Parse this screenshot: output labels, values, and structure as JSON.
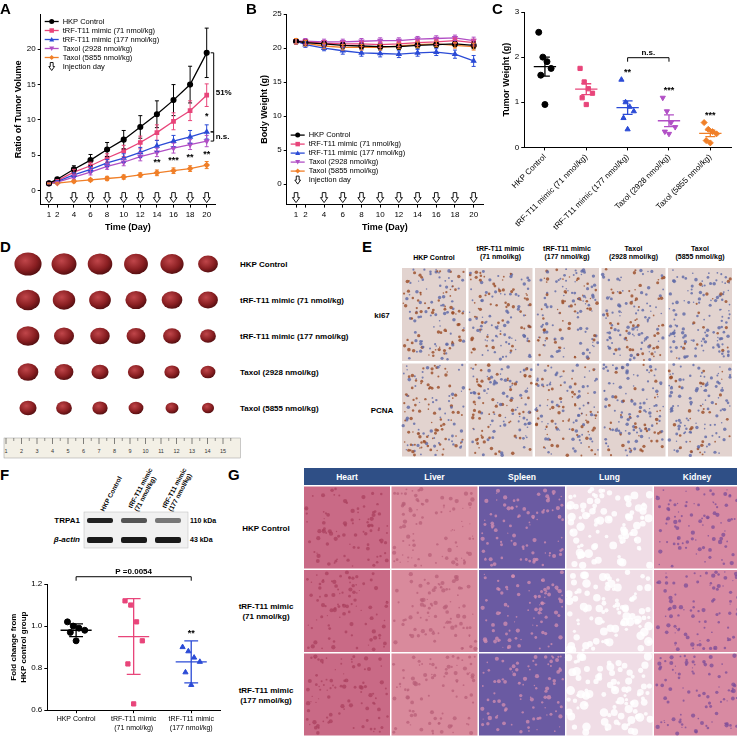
{
  "chart_data": [
    {
      "panel": "A",
      "type": "line",
      "x_label": "Time (Day)",
      "y_label": "Ratio of Tumor Volume",
      "xlim": [
        0,
        21
      ],
      "xticks": [
        1,
        2,
        4,
        6,
        8,
        10,
        12,
        14,
        16,
        18,
        20
      ],
      "ylim": [
        -2,
        25
      ],
      "yticks": [
        0,
        5,
        10,
        15,
        20
      ],
      "grid": false,
      "legend": "upper left",
      "x": [
        1,
        2,
        4,
        6,
        8,
        10,
        12,
        14,
        16,
        18,
        20
      ],
      "series": [
        {
          "name": "HKP Control",
          "color": "#000000",
          "marker": "circle",
          "values": [
            1,
            1.6,
            3,
            4.3,
            5.8,
            7.2,
            9,
            10.8,
            12.8,
            15,
            19.5
          ],
          "errors": [
            0.05,
            0.2,
            0.5,
            0.8,
            1,
            1.3,
            1.6,
            1.9,
            2.2,
            2.6,
            3.5
          ]
        },
        {
          "name": "tRF-T11 mimic (71 nmol/kg)",
          "color": "#e8457a",
          "marker": "square",
          "values": [
            1,
            1.4,
            2.6,
            3.5,
            4.6,
            5.6,
            6.8,
            8.2,
            9.8,
            11.3,
            13.5
          ],
          "errors": [
            0.05,
            0.15,
            0.4,
            0.5,
            0.6,
            0.8,
            0.9,
            1.1,
            1.2,
            1.4,
            1.6
          ]
        },
        {
          "name": "tRF-T11 mimic (177 nmol/kg)",
          "color": "#2b4bd6",
          "marker": "triangle",
          "values": [
            1,
            1.3,
            2.2,
            3,
            3.9,
            4.6,
            5.4,
            6.3,
            7,
            7.6,
            8.3
          ],
          "errors": [
            0.05,
            0.1,
            0.3,
            0.4,
            0.5,
            0.6,
            0.7,
            0.8,
            0.8,
            0.9,
            1
          ]
        },
        {
          "name": "Taxol (2928 nmol/kg)",
          "color": "#b14fc5",
          "marker": "triangle-down",
          "values": [
            1,
            1.2,
            1.9,
            2.6,
            3.4,
            4,
            4.8,
            5.4,
            6,
            6.5,
            7
          ],
          "errors": [
            0.05,
            0.1,
            0.3,
            0.4,
            0.4,
            0.5,
            0.6,
            0.6,
            0.7,
            0.7,
            0.8
          ]
        },
        {
          "name": "Taxol (5855 nmol/kg)",
          "color": "#f07f28",
          "marker": "diamond",
          "values": [
            1,
            1.05,
            1.3,
            1.5,
            1.7,
            1.9,
            2.2,
            2.5,
            2.8,
            3.1,
            3.6
          ],
          "errors": [
            0.05,
            0.1,
            0.2,
            0.2,
            0.3,
            0.3,
            0.3,
            0.4,
            0.4,
            0.4,
            0.5
          ]
        }
      ],
      "injection_days": [
        1,
        4,
        6,
        8,
        10,
        12,
        14,
        16,
        18,
        20
      ],
      "injection_label": "Injection day",
      "annotations": [
        {
          "text": "**",
          "x": 14,
          "y": 3.9
        },
        {
          "text": "***",
          "x": 16,
          "y": 4.3
        },
        {
          "text": "**",
          "x": 18,
          "y": 4.6
        },
        {
          "text": "*",
          "x": 20,
          "y": 10.5
        },
        {
          "text": "**",
          "x": 20,
          "y": 5.1
        }
      ],
      "brackets": [
        {
          "text": "51%",
          "from": "HKP Control",
          "to": "tRF-T11 mimic (177 nmol/kg)"
        },
        {
          "text": "n.s.",
          "from": "tRF-T11 mimic (177 nmol/kg)",
          "to": "Taxol (2928 nmol/kg)"
        }
      ]
    },
    {
      "panel": "B",
      "type": "line",
      "x_label": "Time (Day)",
      "y_label": "Body Weight (g)",
      "xlim": [
        0,
        21
      ],
      "xticks": [
        1,
        2,
        4,
        6,
        8,
        10,
        12,
        14,
        16,
        18,
        20
      ],
      "ylim": [
        -3,
        25
      ],
      "yticks": [
        0,
        5,
        10,
        15,
        20,
        25
      ],
      "grid": false,
      "legend": "lower left",
      "x": [
        1,
        2,
        4,
        6,
        8,
        10,
        12,
        14,
        16,
        18,
        20
      ],
      "series": [
        {
          "name": "HKP Control",
          "color": "#000000",
          "marker": "circle",
          "values": [
            21,
            20.8,
            20.6,
            20.4,
            20.3,
            20.2,
            20.2,
            20.4,
            20.5,
            20.6,
            20.4
          ],
          "errors": [
            0.4,
            0.4,
            0.4,
            0.4,
            0.4,
            0.4,
            0.4,
            0.4,
            0.4,
            0.4,
            0.5
          ]
        },
        {
          "name": "tRF-T11 mimic (71 nmol/kg)",
          "color": "#e8457a",
          "marker": "square",
          "values": [
            21,
            20.9,
            20.7,
            20.6,
            20.6,
            20.5,
            20.6,
            20.8,
            20.9,
            21.1,
            20.8
          ],
          "errors": [
            0.4,
            0.4,
            0.4,
            0.4,
            0.4,
            0.4,
            0.4,
            0.4,
            0.4,
            0.4,
            0.5
          ]
        },
        {
          "name": "tRF-T11 mimic (177 nmol/kg)",
          "color": "#2b4bd6",
          "marker": "triangle",
          "values": [
            21,
            20.5,
            20,
            19.6,
            19.3,
            19.2,
            19.1,
            19.3,
            19.4,
            19.1,
            18.1
          ],
          "errors": [
            0.4,
            0.4,
            0.4,
            0.5,
            0.5,
            0.5,
            0.5,
            0.5,
            0.5,
            0.6,
            0.8
          ]
        },
        {
          "name": "Taxol (2928 nmol/kg)",
          "color": "#b14fc5",
          "marker": "triangle-down",
          "values": [
            21,
            21,
            20.9,
            20.9,
            21,
            21.1,
            21.1,
            21.3,
            21.4,
            21.5,
            21.1
          ],
          "errors": [
            0.4,
            0.4,
            0.4,
            0.4,
            0.4,
            0.4,
            0.4,
            0.4,
            0.4,
            0.4,
            0.5
          ]
        },
        {
          "name": "Taxol (5855 nmol/kg)",
          "color": "#f07f28",
          "marker": "diamond",
          "values": [
            21,
            20.7,
            20.3,
            20.1,
            20.1,
            20.1,
            20.3,
            20.5,
            20.6,
            20.4,
            20.2
          ],
          "errors": [
            0.4,
            0.4,
            0.4,
            0.4,
            0.4,
            0.4,
            0.4,
            0.4,
            0.4,
            0.4,
            0.5
          ]
        }
      ],
      "injection_days": [
        1,
        4,
        6,
        8,
        10,
        12,
        14,
        16,
        18,
        20
      ],
      "injection_label": "Injection day"
    },
    {
      "panel": "C",
      "type": "scatter",
      "y_label": "Tumor Weight (g)",
      "ylim": [
        0,
        3
      ],
      "yticks": [
        0,
        1,
        2,
        3
      ],
      "grid": false,
      "categories": [
        "HKP Control",
        "tRF-T11 mimic (71 nmol/kg)",
        "tRF-T11 mimic (177 nmol/kg)",
        "Taxol (2928 nmol/kg)",
        "Taxol (5855 nmol/kg)"
      ],
      "groups": [
        {
          "color": "#000000",
          "marker": "circle",
          "values": [
            2.55,
            2.0,
            1.9,
            1.75,
            1.6,
            0.95
          ],
          "mean": 1.79,
          "error": 0.21
        },
        {
          "color": "#e8457a",
          "marker": "square",
          "values": [
            1.75,
            1.45,
            1.3,
            1.2,
            1.1,
            0.95
          ],
          "mean": 1.29,
          "error": 0.12
        },
        {
          "color": "#2b4bd6",
          "marker": "triangle",
          "values": [
            1.5,
            1.0,
            0.9,
            0.8,
            0.65,
            0.4
          ],
          "mean": 0.88,
          "error": 0.15
        },
        {
          "color": "#b14fc5",
          "marker": "triangle-down",
          "values": [
            1.1,
            0.8,
            0.55,
            0.45,
            0.35,
            0.3
          ],
          "mean": 0.59,
          "error": 0.13
        },
        {
          "color": "#f07f28",
          "marker": "diamond",
          "values": [
            0.55,
            0.4,
            0.35,
            0.3,
            0.15,
            0.1
          ],
          "mean": 0.31,
          "error": 0.07
        }
      ],
      "annotations": [
        {
          "text": "**",
          "category": "tRF-T11 mimic (177 nmol/kg)"
        },
        {
          "text": "***",
          "category": "Taxol (2928 nmol/kg)"
        },
        {
          "text": "***",
          "category": "Taxol (5855 nmol/kg)"
        }
      ],
      "brackets": [
        {
          "text": "n.s.",
          "from": "tRF-T11 mimic (177 nmol/kg)",
          "to": "Taxol (2928 nmol/kg)"
        }
      ]
    },
    {
      "panel": "F",
      "type": "scatter",
      "y_label": "Fold change from HKP control group",
      "ylim": [
        0.6,
        1.2
      ],
      "yticks": [
        0.6,
        0.8,
        {
          "value": 1,
          "label": "1.0"
        },
        1.2
      ],
      "grid": false,
      "categories": [
        "HKP Control",
        "tRF-T11 mimic (71 nmol/kg)",
        "tRF-T11 mimic (177 nmol/kg)"
      ],
      "groups": [
        {
          "color": "#000000",
          "marker": "circle",
          "values": [
            1.02,
            1.0,
            0.99,
            0.98,
            0.97,
            0.93
          ],
          "mean": 0.98,
          "error": 0.03
        },
        {
          "color": "#e8457a",
          "marker": "square",
          "values": [
            1.12,
            1.1,
            1.02,
            0.93,
            0.82,
            0.63
          ],
          "mean": 0.95,
          "error": 0.18
        },
        {
          "color": "#2b4bd6",
          "marker": "triangle",
          "values": [
            0.9,
            0.88,
            0.85,
            0.83,
            0.78,
            0.72
          ],
          "mean": 0.83,
          "error": 0.1
        }
      ],
      "annotations": [
        {
          "text": "**",
          "category": "tRF-T11 mimic (177 nmol/kg)"
        }
      ],
      "brackets": [
        {
          "text": "P =0.0054",
          "from": "HKP Control",
          "to": "tRF-T11 mimic (177 nmol/kg)"
        }
      ]
    }
  ],
  "blot": {
    "lanes": [
      "HKP Control",
      "tRF-T11 mimic (71 nmol/kg)",
      "tRF-T11 mimic (177 nmol/kg)"
    ],
    "bands": [
      {
        "name": "TRPA1",
        "size": "110 kDa"
      },
      {
        "name": "β-actin",
        "size": "43 kDa"
      }
    ]
  },
  "photos": [
    {
      "panel": "D",
      "rows": [
        "HKP Control",
        "tRF-T11 mimic (71 nmol/kg)",
        "tRF-T11 mimic (177 nmol/kg)",
        "Taxol (2928 nmol/kg)",
        "Taxol (5855 nmol/kg)"
      ],
      "ruler": [
        1,
        2,
        3,
        4,
        5,
        6,
        7,
        8,
        9,
        10,
        11,
        12,
        13,
        14,
        15
      ]
    },
    {
      "panel": "E",
      "columns": [
        "HKP Control",
        "tRF-T11 mimic (71 nmol/kg)",
        "tRF-T11 mimic (177 nmol/kg)",
        "Taxol (2928 nmol/kg)",
        "Taxol (5855 nmol/kg)"
      ],
      "rows": [
        "ki67",
        "PCNA"
      ]
    },
    {
      "panel": "G",
      "columns": [
        "Heart",
        "Liver",
        "Spleen",
        "Lung",
        "Kidney"
      ],
      "rows": [
        "HKP Control",
        "tRF-T11 mimic (71 nmol/kg)",
        "tRF-T11 mimic (177 nmol/kg)"
      ]
    }
  ]
}
